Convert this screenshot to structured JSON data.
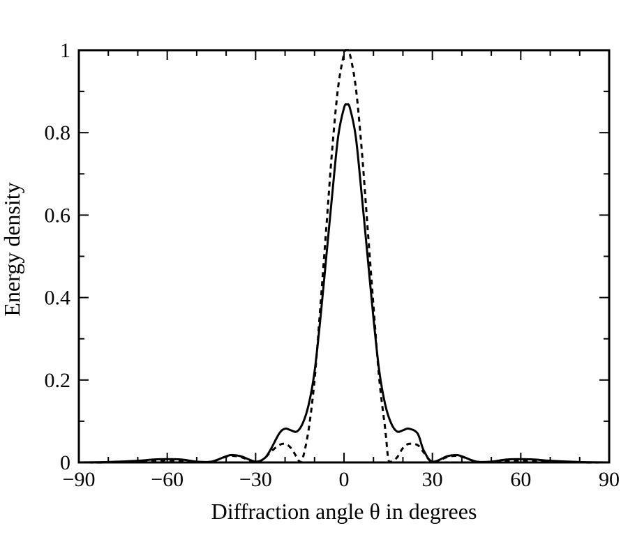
{
  "chart_data": {
    "type": "line",
    "title": "",
    "xlabel": "Diffraction angle θ in degrees",
    "ylabel": "Energy density",
    "xlim": [
      -90,
      90
    ],
    "ylim": [
      0,
      1
    ],
    "x_ticks": [
      -90,
      -60,
      -30,
      0,
      30,
      60,
      90
    ],
    "x_tick_labels": [
      "−90",
      "−60",
      "−30",
      "0",
      "30",
      "60",
      "90"
    ],
    "x_minor_step": 10,
    "y_ticks": [
      0,
      0.2,
      0.4,
      0.6,
      0.8,
      1
    ],
    "y_tick_labels": [
      "0",
      "0.2",
      "0.4",
      "0.6",
      "0.8",
      "1"
    ],
    "y_minor_step": 0.1,
    "grid": false,
    "legend": "none",
    "series": [
      {
        "line_style": "solid",
        "color": "#000000",
        "x": [
          -90,
          -80,
          -70,
          -65,
          -60,
          -55,
          -50,
          -45,
          -40,
          -38,
          -35,
          -30,
          -27,
          -25,
          -22,
          -20,
          -18,
          -16,
          -14,
          -12,
          -10,
          -8,
          -6,
          -4,
          -2,
          0,
          1,
          2,
          4,
          6,
          8,
          10,
          12,
          14,
          16,
          18,
          20,
          22,
          25,
          27,
          30,
          35,
          38,
          40,
          45,
          50,
          55,
          60,
          65,
          70,
          80,
          90
        ],
        "y": [
          0,
          0.001,
          0.004,
          0.007,
          0.008,
          0.007,
          0.002,
          0.002,
          0.015,
          0.018,
          0.015,
          0.002,
          0.01,
          0.03,
          0.07,
          0.082,
          0.078,
          0.075,
          0.095,
          0.14,
          0.22,
          0.35,
          0.5,
          0.65,
          0.79,
          0.86,
          0.868,
          0.86,
          0.79,
          0.65,
          0.5,
          0.35,
          0.22,
          0.14,
          0.095,
          0.075,
          0.078,
          0.082,
          0.07,
          0.03,
          0.002,
          0.015,
          0.018,
          0.015,
          0.002,
          0.002,
          0.007,
          0.008,
          0.007,
          0.004,
          0.001,
          0
        ]
      },
      {
        "line_style": "dashed",
        "color": "#000000",
        "x": [
          -90,
          -80,
          -70,
          -65,
          -60,
          -55,
          -50,
          -45,
          -40,
          -38,
          -35,
          -30,
          -27,
          -25,
          -22,
          -20,
          -18,
          -16,
          -15,
          -14,
          -12,
          -10,
          -8,
          -6,
          -4,
          -2,
          0,
          1,
          2,
          4,
          6,
          8,
          10,
          12,
          14,
          15,
          16,
          18,
          20,
          22,
          25,
          27,
          30,
          35,
          38,
          40,
          45,
          50,
          55,
          60,
          65,
          70,
          80,
          90
        ],
        "y": [
          0,
          0,
          0.002,
          0.004,
          0.005,
          0.004,
          0.001,
          0.002,
          0.014,
          0.016,
          0.013,
          0.001,
          0.01,
          0.025,
          0.042,
          0.045,
          0.035,
          0.012,
          0.002,
          0.01,
          0.08,
          0.2,
          0.38,
          0.57,
          0.76,
          0.91,
          0.99,
          1.0,
          0.99,
          0.91,
          0.76,
          0.57,
          0.38,
          0.2,
          0.08,
          0.01,
          0.002,
          0.012,
          0.035,
          0.045,
          0.042,
          0.025,
          0.001,
          0.013,
          0.016,
          0.014,
          0.002,
          0.001,
          0.004,
          0.005,
          0.004,
          0.002,
          0,
          0
        ]
      }
    ]
  }
}
